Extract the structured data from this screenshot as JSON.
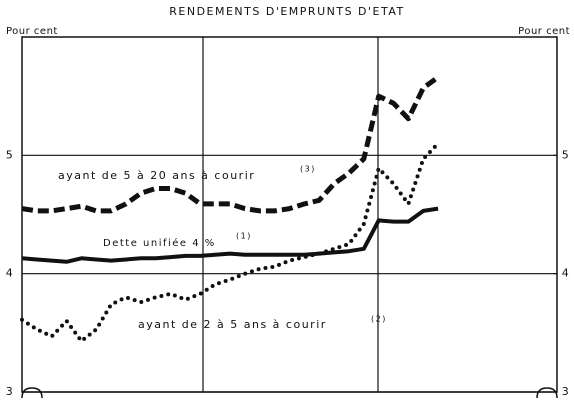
{
  "chart_data": {
    "type": "line",
    "title": "RENDEMENTS D'EMPRUNTS D'ETAT",
    "ylabel": "Pour cent",
    "y2label": "Pour cent",
    "categories": [
      null,
      null,
      null,
      null,
      null,
      null,
      null,
      null,
      null,
      null,
      null,
      null,
      null,
      null,
      null,
      null,
      null,
      null,
      null,
      null,
      null,
      null,
      null,
      null,
      null,
      null,
      null,
      null,
      null
    ],
    "series": [
      {
        "name": "ayant de 5 à 20 ans à courir",
        "note": "(3)",
        "color": "#111111",
        "style": "dashed",
        "values": [
          4.55,
          4.53,
          4.53,
          4.55,
          4.57,
          4.53,
          4.53,
          4.59,
          4.68,
          4.72,
          4.72,
          4.68,
          4.59,
          4.59,
          4.59,
          4.55,
          4.53,
          4.53,
          4.55,
          4.59,
          4.62,
          4.76,
          4.85,
          4.97,
          5.5,
          5.44,
          5.31,
          5.57,
          5.66
        ]
      },
      {
        "name": "Dette unifiée 4 %",
        "note": "(1)",
        "color": "#111111",
        "style": "solid",
        "values": [
          4.13,
          4.12,
          4.11,
          4.1,
          4.13,
          4.12,
          4.11,
          4.12,
          4.13,
          4.13,
          4.14,
          4.15,
          4.15,
          4.16,
          4.17,
          4.16,
          4.16,
          4.16,
          4.16,
          4.16,
          4.17,
          4.18,
          4.19,
          4.21,
          4.45,
          4.44,
          4.44,
          4.53,
          4.55
        ]
      },
      {
        "name": "ayant de 2 à 5 ans à courir",
        "note": "(2)",
        "color": "#111111",
        "style": "dotted",
        "values": [
          3.61,
          3.53,
          3.47,
          3.6,
          3.43,
          3.53,
          3.74,
          3.8,
          3.76,
          3.8,
          3.83,
          3.78,
          3.83,
          3.91,
          3.95,
          4.0,
          4.04,
          4.06,
          4.11,
          4.14,
          4.17,
          4.21,
          4.25,
          4.42,
          4.89,
          4.76,
          4.59,
          4.97,
          5.1
        ]
      }
    ],
    "ylim": [
      3,
      6
    ],
    "yticks": [
      3,
      4,
      5
    ],
    "y2lim": [
      3,
      6
    ],
    "y2ticks": [
      3,
      4,
      5
    ],
    "grid": true
  }
}
